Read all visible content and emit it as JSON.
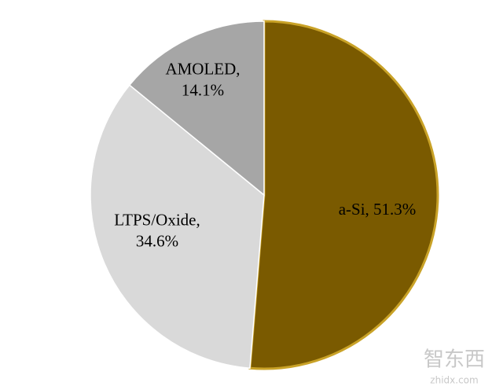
{
  "chart_data": {
    "type": "pie",
    "values": [
      51.3,
      34.6,
      14.1
    ],
    "labels": [
      [
        "a-Si, 51.3%"
      ],
      [
        "LTPS/Oxide,",
        "34.6%"
      ],
      [
        "AMOLED,",
        "14.1%"
      ]
    ],
    "colors": [
      "#7a5a00",
      "#d9d9d9",
      "#a6a6a6"
    ],
    "watermark": "智东西",
    "watermark_url": "zhidx.com"
  }
}
